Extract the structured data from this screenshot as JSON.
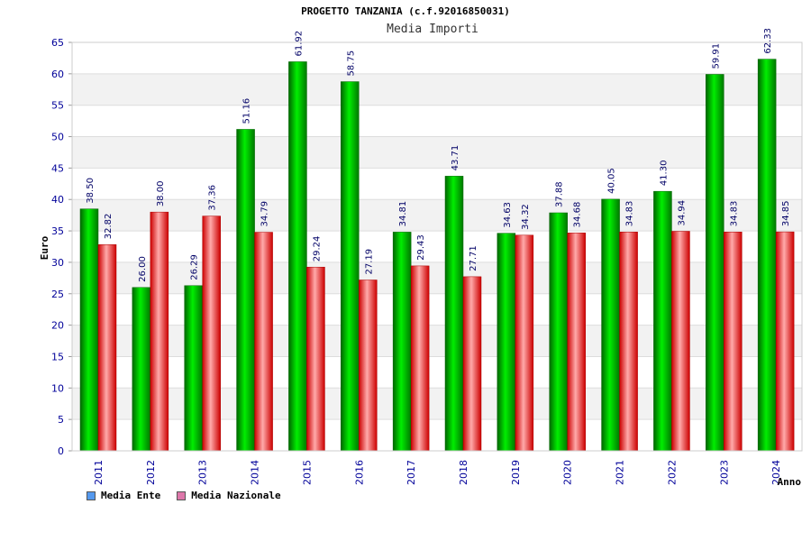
{
  "chart_data": {
    "type": "bar",
    "title": "PROGETTO TANZANIA (c.f.92016850031)",
    "subtitle": "Media Importi",
    "ylabel": "Euro",
    "xlabel": "Anno",
    "ylim": [
      0,
      65
    ],
    "yticks": [
      "0",
      "5",
      "10",
      "15",
      "20",
      "25",
      "30",
      "35",
      "40",
      "45",
      "50",
      "55",
      "60",
      "65"
    ],
    "categories": [
      "2011",
      "2012",
      "2013",
      "2014",
      "2015",
      "2016",
      "2017",
      "2018",
      "2019",
      "2020",
      "2021",
      "2022",
      "2023",
      "2024"
    ],
    "series": [
      {
        "name": "Media Ente",
        "color": "#00cc00",
        "values": [
          38.5,
          26.0,
          26.29,
          51.16,
          61.92,
          58.75,
          34.81,
          43.71,
          34.63,
          37.88,
          40.05,
          41.3,
          59.91,
          62.33
        ],
        "labels": [
          "38.50",
          "26.00",
          "26.29",
          "51.16",
          "61.92",
          "58.75",
          "34.81",
          "43.71",
          "34.63",
          "37.88",
          "40.05",
          "41.30",
          "59.91",
          "62.33"
        ]
      },
      {
        "name": "Media Nazionale",
        "color": "#ee2222",
        "values": [
          32.82,
          38.0,
          37.36,
          34.79,
          29.24,
          27.19,
          29.43,
          27.71,
          34.32,
          34.68,
          34.83,
          34.94,
          34.83,
          34.85
        ],
        "labels": [
          "32.82",
          "38.00",
          "37.36",
          "34.79",
          "29.24",
          "27.19",
          "29.43",
          "27.71",
          "34.32",
          "34.68",
          "34.83",
          "34.94",
          "34.83",
          "34.85"
        ]
      }
    ],
    "legend": [
      {
        "label": "Media Ente",
        "color": "#5599ee"
      },
      {
        "label": "Media Nazionale",
        "color": "#dd77aa"
      }
    ],
    "grid": true,
    "legend_position": "bottom-left"
  }
}
